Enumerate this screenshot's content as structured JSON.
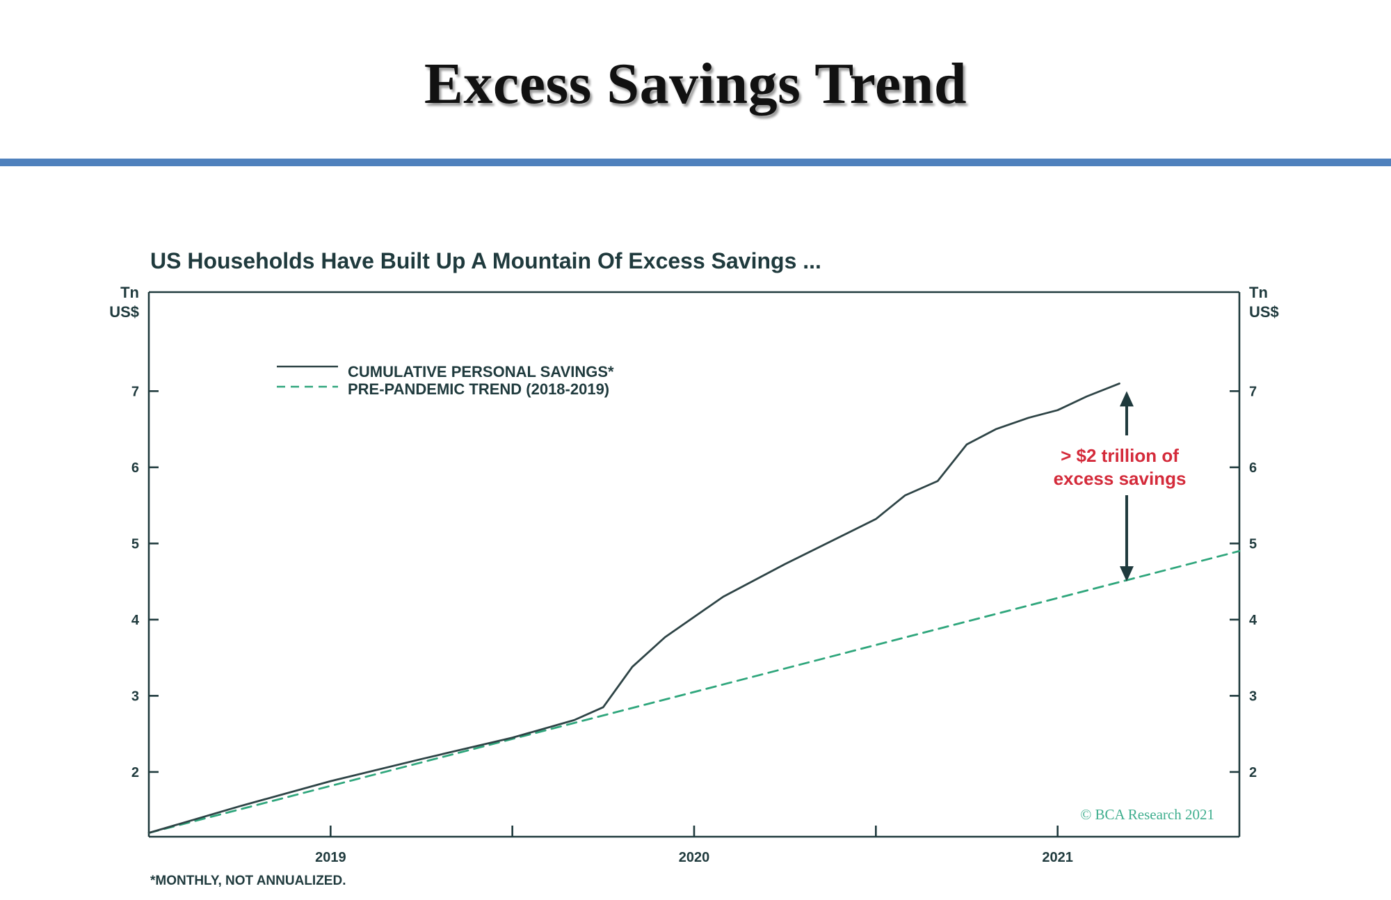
{
  "slide": {
    "title": "Excess Savings Trend"
  },
  "chart_data": {
    "type": "line",
    "title": "US Households Have Built Up A Mountain Of Excess Savings ...",
    "ylabel_left": [
      "Tn",
      "US$"
    ],
    "ylabel_right": [
      "Tn",
      "US$"
    ],
    "xlim": [
      2018.5,
      2021.5
    ],
    "ylim": [
      1.15,
      8.3
    ],
    "yticks": [
      2,
      3,
      4,
      5,
      6,
      7
    ],
    "xticks": [
      2019.0,
      2019.5,
      2020.0,
      2020.5,
      2021.0
    ],
    "xtick_labels": [
      {
        "x": 2019.0,
        "label": "2019"
      },
      {
        "x": 2020.0,
        "label": "2020"
      },
      {
        "x": 2021.0,
        "label": "2021"
      }
    ],
    "grid": false,
    "legend_position": "top-left",
    "series": [
      {
        "name": "CUMULATIVE PERSONAL SAVINGS*",
        "style": "solid",
        "color": "#2e4446",
        "x": [
          2018.5,
          2018.75,
          2019.0,
          2019.25,
          2019.5,
          2019.67,
          2019.75,
          2019.83,
          2019.92,
          2020.08,
          2020.25,
          2020.5,
          2020.58,
          2020.67,
          2020.75,
          2020.83,
          2020.92,
          2021.0,
          2021.08,
          2021.17
        ],
        "y": [
          1.2,
          1.55,
          1.88,
          2.17,
          2.45,
          2.68,
          2.85,
          3.38,
          3.77,
          4.3,
          4.73,
          5.32,
          5.63,
          5.82,
          6.3,
          6.5,
          6.65,
          6.75,
          6.93,
          7.1
        ]
      },
      {
        "name": "PRE-PANDEMIC TREND (2018-2019)",
        "style": "dashed",
        "color": "#2fa67c",
        "x": [
          2018.5,
          2021.5
        ],
        "y": [
          1.2,
          4.9
        ]
      }
    ],
    "annotation": {
      "lines": [
        "> $2 trillion of",
        "excess savings"
      ],
      "color": "#d42a3a",
      "arrow_x": 2021.19,
      "arrow_y_top": 7.0,
      "arrow_y_bottom": 4.5
    },
    "credit": "© BCA Research 2021",
    "footnote": "*MONTHLY, NOT ANNUALIZED."
  }
}
